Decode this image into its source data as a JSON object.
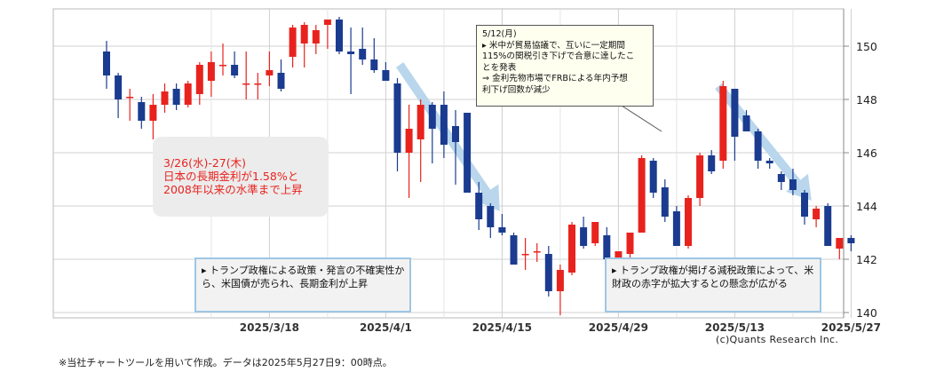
{
  "chart_data": {
    "type": "candlestick",
    "y_axis": {
      "ticks": [
        140,
        142,
        144,
        146,
        148,
        150
      ],
      "ylim": [
        139.8,
        151.4
      ],
      "position": "right"
    },
    "x_axis": {
      "tick_labels": [
        "2025/3/18",
        "2025/4/1",
        "2025/4/15",
        "2025/4/29",
        "2025/5/13",
        "2025/5/27"
      ]
    },
    "grid": true,
    "colors": {
      "up": "#e8231e",
      "down": "#1a3b8f",
      "arrow": "#b9d6ec",
      "box_border": "#9ec6e4"
    },
    "candles": [
      {
        "o": 149.8,
        "h": 150.2,
        "l": 148.4,
        "c": 148.9
      },
      {
        "o": 148.9,
        "h": 149.0,
        "l": 147.3,
        "c": 148.0
      },
      {
        "o": 148.1,
        "h": 148.4,
        "l": 147.2,
        "c": 148.1
      },
      {
        "o": 147.9,
        "h": 148.1,
        "l": 146.9,
        "c": 147.2
      },
      {
        "o": 147.2,
        "h": 148.2,
        "l": 146.5,
        "c": 147.8
      },
      {
        "o": 147.8,
        "h": 148.6,
        "l": 147.5,
        "c": 148.3
      },
      {
        "o": 148.4,
        "h": 148.6,
        "l": 147.6,
        "c": 147.8
      },
      {
        "o": 147.8,
        "h": 148.7,
        "l": 147.7,
        "c": 148.6
      },
      {
        "o": 148.2,
        "h": 149.4,
        "l": 147.8,
        "c": 149.3
      },
      {
        "o": 148.7,
        "h": 149.8,
        "l": 148.1,
        "c": 149.4
      },
      {
        "o": 149.3,
        "h": 150.1,
        "l": 148.9,
        "c": 149.3
      },
      {
        "o": 149.3,
        "h": 149.8,
        "l": 148.8,
        "c": 148.9
      },
      {
        "o": 148.6,
        "h": 149.8,
        "l": 148.0,
        "c": 148.6
      },
      {
        "o": 148.6,
        "h": 149.0,
        "l": 148.0,
        "c": 148.6
      },
      {
        "o": 148.9,
        "h": 149.8,
        "l": 148.5,
        "c": 149.1
      },
      {
        "o": 149.0,
        "h": 149.5,
        "l": 148.3,
        "c": 148.4
      },
      {
        "o": 149.6,
        "h": 150.8,
        "l": 149.2,
        "c": 150.7
      },
      {
        "o": 150.1,
        "h": 150.9,
        "l": 149.2,
        "c": 150.8
      },
      {
        "o": 150.1,
        "h": 150.8,
        "l": 149.7,
        "c": 150.6
      },
      {
        "o": 150.8,
        "h": 151.0,
        "l": 149.9,
        "c": 151.0
      },
      {
        "o": 151.0,
        "h": 151.1,
        "l": 149.7,
        "c": 149.8
      },
      {
        "o": 149.8,
        "h": 150.7,
        "l": 148.2,
        "c": 149.7
      },
      {
        "o": 149.9,
        "h": 150.7,
        "l": 149.3,
        "c": 149.5
      },
      {
        "o": 149.5,
        "h": 150.3,
        "l": 149.0,
        "c": 149.1
      },
      {
        "o": 149.1,
        "h": 149.4,
        "l": 148.7,
        "c": 148.7
      },
      {
        "o": 148.6,
        "h": 148.8,
        "l": 145.3,
        "c": 146.0
      },
      {
        "o": 146.0,
        "h": 147.8,
        "l": 144.3,
        "c": 146.9
      },
      {
        "o": 146.5,
        "h": 148.0,
        "l": 144.9,
        "c": 147.8
      },
      {
        "o": 147.8,
        "h": 147.9,
        "l": 145.6,
        "c": 146.9
      },
      {
        "o": 147.8,
        "h": 148.3,
        "l": 145.8,
        "c": 146.3
      },
      {
        "o": 147.0,
        "h": 147.6,
        "l": 144.8,
        "c": 146.4
      },
      {
        "o": 147.5,
        "h": 147.5,
        "l": 144.5,
        "c": 144.5
      },
      {
        "o": 144.5,
        "h": 144.9,
        "l": 143.1,
        "c": 143.5
      },
      {
        "o": 144.0,
        "h": 144.1,
        "l": 142.8,
        "c": 143.2
      },
      {
        "o": 143.2,
        "h": 143.7,
        "l": 142.9,
        "c": 143.0
      },
      {
        "o": 142.9,
        "h": 143.0,
        "l": 141.8,
        "c": 141.8
      },
      {
        "o": 142.2,
        "h": 142.8,
        "l": 141.6,
        "c": 142.2
      },
      {
        "o": 142.3,
        "h": 142.6,
        "l": 141.9,
        "c": 142.3
      },
      {
        "o": 142.2,
        "h": 142.5,
        "l": 140.6,
        "c": 140.8
      },
      {
        "o": 140.8,
        "h": 141.8,
        "l": 139.9,
        "c": 141.6
      },
      {
        "o": 141.5,
        "h": 143.4,
        "l": 141.4,
        "c": 143.3
      },
      {
        "o": 143.2,
        "h": 143.6,
        "l": 142.4,
        "c": 142.5
      },
      {
        "o": 142.6,
        "h": 143.3,
        "l": 142.5,
        "c": 143.4
      },
      {
        "o": 142.9,
        "h": 143.2,
        "l": 141.9,
        "c": 142.0
      },
      {
        "o": 142.0,
        "h": 142.2,
        "l": 141.7,
        "c": 142.3
      },
      {
        "o": 142.2,
        "h": 143.0,
        "l": 142.0,
        "c": 143.0
      },
      {
        "o": 143.0,
        "h": 145.9,
        "l": 143.0,
        "c": 145.8
      },
      {
        "o": 145.7,
        "h": 145.8,
        "l": 144.3,
        "c": 144.5
      },
      {
        "o": 144.7,
        "h": 145.0,
        "l": 143.4,
        "c": 143.6
      },
      {
        "o": 143.8,
        "h": 144.0,
        "l": 142.5,
        "c": 142.5
      },
      {
        "o": 142.5,
        "h": 144.4,
        "l": 142.4,
        "c": 144.3
      },
      {
        "o": 144.3,
        "h": 146.0,
        "l": 144.0,
        "c": 145.9
      },
      {
        "o": 145.9,
        "h": 146.1,
        "l": 145.2,
        "c": 145.3
      },
      {
        "o": 145.7,
        "h": 148.7,
        "l": 145.4,
        "c": 148.5
      },
      {
        "o": 148.4,
        "h": 148.4,
        "l": 145.7,
        "c": 146.6
      },
      {
        "o": 147.4,
        "h": 147.6,
        "l": 146.8,
        "c": 146.8
      },
      {
        "o": 146.8,
        "h": 146.9,
        "l": 145.4,
        "c": 145.7
      },
      {
        "o": 145.7,
        "h": 145.8,
        "l": 145.4,
        "c": 145.6
      },
      {
        "o": 145.2,
        "h": 145.3,
        "l": 144.6,
        "c": 144.9
      },
      {
        "o": 145.0,
        "h": 145.4,
        "l": 144.4,
        "c": 144.6
      },
      {
        "o": 144.5,
        "h": 144.6,
        "l": 143.3,
        "c": 143.6
      },
      {
        "o": 143.5,
        "h": 144.0,
        "l": 143.2,
        "c": 143.9
      },
      {
        "o": 144.0,
        "h": 144.1,
        "l": 142.5,
        "c": 142.5
      },
      {
        "o": 142.4,
        "h": 142.8,
        "l": 142.0,
        "c": 142.8
      },
      {
        "o": 142.8,
        "h": 142.9,
        "l": 142.3,
        "c": 142.6
      }
    ]
  },
  "annotations": {
    "boj_note": [
      "3/26(水)-27(木)",
      "日本の長期金利が1.58%と",
      "2008年以来の水準まで上昇"
    ],
    "tariff_box": [
      "▸ トランプ政権による政策・発言の不確実性か",
      "ら、米国債が売られ、長期金利が上昇"
    ],
    "deficit_box": [
      "▸ トランプ政権が掲げる減税政策によって、米",
      "財政の赤字が拡大するとの懸念が広がる"
    ],
    "may12_box": [
      "5/12(月)",
      "▸ 米中が貿易協議で、互いに一定期間",
      "115%の関税引き下げで合意に達したこ",
      "とを発表",
      "⇒ 金利先物市場でFRBによる年内予想",
      "利下げ回数が減少"
    ]
  },
  "credit": "(c)Quants Research Inc.",
  "footnote": "※当社チャートツールを用いて作成。データは2025年5月27日9：00時点。"
}
